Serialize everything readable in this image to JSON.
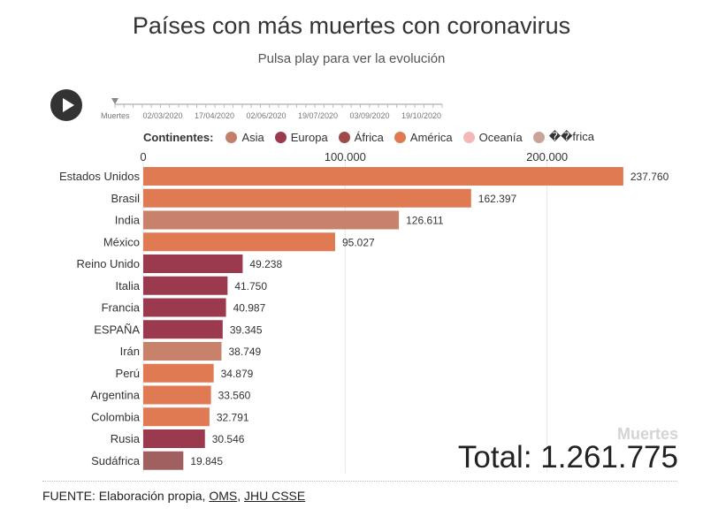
{
  "title": "Países con más muertes con coronavirus",
  "subtitle": "Pulsa play para ver la evolución",
  "timeline": {
    "label": "Muertes",
    "dates": [
      "02/03/2020",
      "17/04/2020",
      "02/06/2020",
      "19/07/2020",
      "03/09/2020",
      "19/10/2020"
    ]
  },
  "legend": {
    "title": "Continentes:",
    "items": [
      {
        "label": "Asia",
        "color": "#c47f6b"
      },
      {
        "label": "Europa",
        "color": "#9b3a4f"
      },
      {
        "label": "África",
        "color": "#9e4a4a"
      },
      {
        "label": "América",
        "color": "#e07a52"
      },
      {
        "label": "Oceanía",
        "color": "#f4b8b8"
      },
      {
        "label": "��frica",
        "color": "#c9a396"
      }
    ]
  },
  "colors": {
    "asia": "#c8826b",
    "europa": "#9b3a4f",
    "africa": "#a06060",
    "america": "#e07a52"
  },
  "chart_data": {
    "type": "bar",
    "orientation": "horizontal",
    "xlim": [
      0,
      240000
    ],
    "ticks": [
      {
        "value": 0,
        "label": "0"
      },
      {
        "value": 100000,
        "label": "100.000"
      },
      {
        "value": 200000,
        "label": "200.000"
      }
    ],
    "bars": [
      {
        "country": "Estados Unidos",
        "value": 237760,
        "label": "237.760",
        "continent": "América"
      },
      {
        "country": "Brasil",
        "value": 162397,
        "label": "162.397",
        "continent": "América"
      },
      {
        "country": "India",
        "value": 126611,
        "label": "126.611",
        "continent": "Asia"
      },
      {
        "country": "México",
        "value": 95027,
        "label": "95.027",
        "continent": "América"
      },
      {
        "country": "Reino Unido",
        "value": 49238,
        "label": "49.238",
        "continent": "Europa"
      },
      {
        "country": "Italia",
        "value": 41750,
        "label": "41.750",
        "continent": "Europa"
      },
      {
        "country": "Francia",
        "value": 40987,
        "label": "40.987",
        "continent": "Europa"
      },
      {
        "country": "ESPAÑA",
        "value": 39345,
        "label": "39.345",
        "continent": "Europa"
      },
      {
        "country": "Irán",
        "value": 38749,
        "label": "38.749",
        "continent": "Asia"
      },
      {
        "country": "Perú",
        "value": 34879,
        "label": "34.879",
        "continent": "América"
      },
      {
        "country": "Argentina",
        "value": 33560,
        "label": "33.560",
        "continent": "América"
      },
      {
        "country": "Colombia",
        "value": 32791,
        "label": "32.791",
        "continent": "América"
      },
      {
        "country": "Rusia",
        "value": 30546,
        "label": "30.546",
        "continent": "Europa"
      },
      {
        "country": "Sudáfrica",
        "value": 19845,
        "label": "19.845",
        "continent": "África"
      }
    ]
  },
  "metric_label": "Muertes",
  "total": "Total: 1.261.775",
  "source": {
    "prefix": "FUENTE: Elaboración propia, ",
    "link1": "OMS",
    "sep": ", ",
    "link2": "JHU CSSE"
  }
}
